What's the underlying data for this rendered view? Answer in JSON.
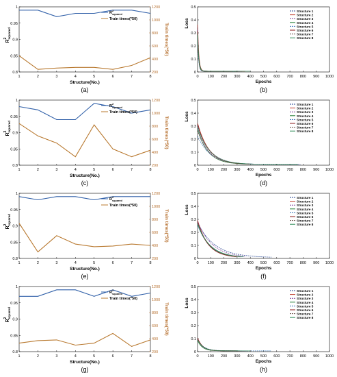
{
  "colors": {
    "r2_line": "#2f5fa8",
    "time_line": "#b8782e",
    "r2_axis": "#000000",
    "time_axis": "#b87333",
    "grid": "#e6e6e6"
  },
  "left_axis_common": {
    "xlabel": "Structure(No.)",
    "ylabel_main": "R",
    "ylabel_sup": "2",
    "ylabel_sub": "squared",
    "y2label": "Train times(*50)",
    "legend_r2_main": "R",
    "legend_r2_sup": "2",
    "legend_r2_sub": "squared",
    "legend_time": "Train times(*50)",
    "legend_position": "top-right",
    "xlim": [
      1,
      8
    ],
    "ylim": [
      0.8,
      1.0
    ],
    "y2lim": [
      200,
      1200
    ],
    "xticks": [
      "1",
      "2",
      "3",
      "4",
      "5",
      "6",
      "7",
      "8"
    ],
    "yticks": [
      "0.8",
      "0.85",
      "0.9",
      "0.95",
      "1"
    ],
    "y2ticks": [
      "200",
      "400",
      "600",
      "800",
      "1000",
      "1200"
    ]
  },
  "right_axis_common": {
    "xlabel": "Epochs",
    "ylabel": "Loss",
    "xlim": [
      0,
      1000
    ],
    "ylim": [
      0,
      0.5
    ],
    "xticks": [
      "0",
      "100",
      "200",
      "300",
      "400",
      "500",
      "600",
      "700",
      "800",
      "900",
      "1000"
    ],
    "yticks": [
      "0",
      "0.1",
      "0.2",
      "0.3",
      "0.4",
      "0.5"
    ],
    "legend_entries": [
      "Structure 1",
      "Structure 2",
      "Structure 3",
      "Structure 4",
      "Structure 5",
      "Structure 6",
      "Structure 7",
      "Structure 8"
    ],
    "legend_colors": [
      "#1f3f8f",
      "#c0392b",
      "#7d3c98",
      "#1e7d34",
      "#2e6fb5",
      "#8b1a1a",
      "#5d4037",
      "#2e8b57"
    ],
    "legend_position": "top-right"
  },
  "panel_labels": [
    "(a)",
    "(b)",
    "(c)",
    "(d)",
    "(e)",
    "(f)",
    "(g)",
    "(h)"
  ],
  "chart_data": [
    {
      "panel": "(a)",
      "type": "line",
      "x": [
        1,
        2,
        3,
        4,
        5,
        6,
        7,
        8
      ],
      "series": [
        {
          "name": "R² squared",
          "axis": "left",
          "values": [
            0.99,
            0.99,
            0.97,
            0.98,
            0.98,
            0.99,
            0.99,
            0.98
          ]
        },
        {
          "name": "Train times(*50)",
          "axis": "right",
          "values": [
            450,
            240,
            260,
            270,
            270,
            240,
            300,
            420
          ]
        }
      ]
    },
    {
      "panel": "(b)",
      "type": "line",
      "curves": [
        {
          "a": 0.38,
          "tau": 8,
          "end": 340
        },
        {
          "a": 0.4,
          "tau": 9,
          "end": 360
        },
        {
          "a": 0.36,
          "tau": 8,
          "end": 320
        },
        {
          "a": 0.34,
          "tau": 7,
          "end": 300
        },
        {
          "a": 0.3,
          "tau": 7,
          "end": 280
        },
        {
          "a": 0.35,
          "tau": 8,
          "end": 260
        },
        {
          "a": 0.33,
          "tau": 8,
          "end": 310
        },
        {
          "a": 0.31,
          "tau": 9,
          "end": 400
        }
      ]
    },
    {
      "panel": "(c)",
      "type": "line",
      "x": [
        1,
        2,
        3,
        4,
        5,
        6,
        7,
        8
      ],
      "series": [
        {
          "name": "R² squared",
          "axis": "left",
          "values": [
            0.98,
            0.97,
            0.94,
            0.94,
            0.99,
            0.98,
            0.96,
            0.97
          ]
        },
        {
          "name": "Train times(*50)",
          "axis": "right",
          "values": [
            840,
            650,
            540,
            330,
            820,
            450,
            330,
            430
          ]
        }
      ]
    },
    {
      "panel": "(d)",
      "type": "line",
      "curves": [
        {
          "a": 0.3,
          "tau": 90,
          "end": 780
        },
        {
          "a": 0.32,
          "tau": 85,
          "end": 430
        },
        {
          "a": 0.28,
          "tau": 85,
          "end": 420
        },
        {
          "a": 0.27,
          "tau": 80,
          "end": 380
        },
        {
          "a": 0.22,
          "tau": 95,
          "end": 430
        },
        {
          "a": 0.31,
          "tau": 85,
          "end": 390
        },
        {
          "a": 0.26,
          "tau": 85,
          "end": 350
        },
        {
          "a": 0.29,
          "tau": 90,
          "end": 760
        }
      ]
    },
    {
      "panel": "(e)",
      "type": "line",
      "x": [
        1,
        2,
        3,
        4,
        5,
        6,
        7,
        8
      ],
      "series": [
        {
          "name": "R² squared",
          "axis": "left",
          "values": [
            0.99,
            0.98,
            0.99,
            0.99,
            0.98,
            0.99,
            0.99,
            0.99
          ]
        },
        {
          "name": "Train times(*50)",
          "axis": "right",
          "values": [
            740,
            300,
            550,
            420,
            380,
            390,
            420,
            400
          ]
        }
      ]
    },
    {
      "panel": "(f)",
      "type": "line",
      "curves": [
        {
          "a": 0.27,
          "tau": 130,
          "end": 560
        },
        {
          "a": 0.29,
          "tau": 80,
          "end": 300
        },
        {
          "a": 0.28,
          "tau": 110,
          "end": 360
        },
        {
          "a": 0.26,
          "tau": 90,
          "end": 320
        },
        {
          "a": 0.25,
          "tau": 95,
          "end": 340
        },
        {
          "a": 0.28,
          "tau": 80,
          "end": 290
        },
        {
          "a": 0.27,
          "tau": 85,
          "end": 330
        },
        {
          "a": 0.26,
          "tau": 95,
          "end": 350
        }
      ]
    },
    {
      "panel": "(g)",
      "type": "line",
      "x": [
        1,
        2,
        3,
        4,
        5,
        6,
        7,
        8
      ],
      "series": [
        {
          "name": "R² squared",
          "axis": "left",
          "values": [
            0.97,
            0.97,
            0.99,
            0.99,
            0.97,
            0.99,
            0.97,
            0.98
          ]
        },
        {
          "name": "Train times(*50)",
          "axis": "right",
          "values": [
            330,
            370,
            380,
            300,
            330,
            480,
            280,
            380
          ]
        }
      ]
    },
    {
      "panel": "(h)",
      "type": "line",
      "curves": [
        {
          "a": 0.09,
          "tau": 40,
          "end": 340
        },
        {
          "a": 0.1,
          "tau": 38,
          "end": 360
        },
        {
          "a": 0.09,
          "tau": 36,
          "end": 380
        },
        {
          "a": 0.08,
          "tau": 35,
          "end": 300
        },
        {
          "a": 0.09,
          "tau": 45,
          "end": 560
        },
        {
          "a": 0.1,
          "tau": 38,
          "end": 320
        },
        {
          "a": 0.09,
          "tau": 40,
          "end": 330
        },
        {
          "a": 0.085,
          "tau": 42,
          "end": 400
        }
      ]
    }
  ]
}
